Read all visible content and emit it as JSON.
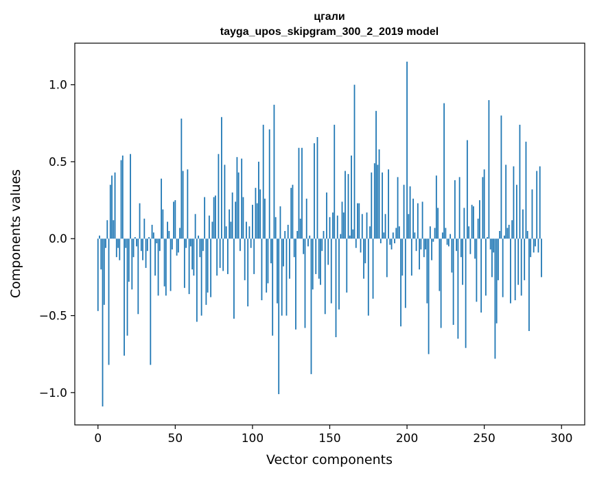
{
  "chart_data": {
    "type": "bar",
    "title_line1": "цгали",
    "title_line2": "tayga_upos_skipgram_300_2_2019 model",
    "xlabel": "Vector components",
    "ylabel": "Components values",
    "xlim": [
      -15,
      315
    ],
    "ylim": [
      -1.21,
      1.27
    ],
    "x_ticks": [
      0,
      50,
      100,
      150,
      200,
      250,
      300
    ],
    "x_tick_labels": [
      "0",
      "50",
      "100",
      "150",
      "200",
      "250",
      "300"
    ],
    "y_ticks": [
      -1.0,
      -0.5,
      0.0,
      0.5,
      1.0
    ],
    "y_tick_labels": [
      "−1.0",
      "−0.5",
      "0.0",
      "0.5",
      "1.0"
    ],
    "bar_color": "#1f77b4",
    "x_start": 0,
    "values": [
      -0.47,
      0.02,
      -0.2,
      -1.09,
      -0.43,
      -0.06,
      0.12,
      -0.82,
      0.35,
      0.41,
      0.12,
      0.43,
      -0.12,
      -0.06,
      -0.14,
      0.51,
      0.54,
      -0.76,
      -0.06,
      -0.63,
      -0.28,
      0.55,
      -0.33,
      -0.12,
      0.01,
      -0.05,
      -0.49,
      0.23,
      -0.08,
      -0.14,
      0.13,
      -0.19,
      -0.08,
      0.01,
      -0.82,
      0.09,
      0.04,
      -0.24,
      -0.03,
      -0.37,
      -0.08,
      0.39,
      0.19,
      -0.31,
      -0.37,
      0.11,
      0.05,
      -0.34,
      -0.07,
      0.24,
      0.25,
      -0.11,
      -0.09,
      0.07,
      0.78,
      0.44,
      -0.32,
      -0.06,
      0.45,
      -0.36,
      -0.05,
      -0.2,
      -0.24,
      0.16,
      -0.54,
      0.02,
      -0.12,
      -0.5,
      -0.08,
      0.27,
      -0.43,
      -0.35,
      0.15,
      -0.38,
      0.11,
      0.27,
      0.28,
      -0.24,
      0.55,
      -0.19,
      0.79,
      -0.21,
      0.48,
      0.08,
      -0.23,
      0.19,
      0.11,
      0.3,
      -0.52,
      0.24,
      0.53,
      0.43,
      -0.08,
      0.52,
      0.27,
      -0.27,
      0.11,
      -0.44,
      0.08,
      -0.06,
      0.22,
      -0.23,
      0.33,
      0.23,
      0.5,
      0.32,
      -0.4,
      0.74,
      0.26,
      -0.35,
      -0.29,
      0.71,
      -0.16,
      -0.63,
      0.87,
      0.14,
      -0.42,
      -1.01,
      0.21,
      -0.5,
      -0.18,
      0.05,
      -0.5,
      0.09,
      -0.26,
      0.33,
      0.35,
      -0.12,
      -0.59,
      0.05,
      0.59,
      0.13,
      0.59,
      -0.1,
      -0.58,
      0.26,
      -0.05,
      0.02,
      -0.88,
      -0.33,
      0.62,
      -0.23,
      0.66,
      -0.26,
      -0.3,
      -0.08,
      0.05,
      -0.49,
      0.3,
      -0.17,
      0.14,
      -0.42,
      0.17,
      0.74,
      -0.64,
      0.15,
      -0.46,
      0.03,
      0.24,
      0.17,
      0.44,
      -0.35,
      0.42,
      0.02,
      0.54,
      0.06,
      1.0,
      -0.06,
      0.23,
      0.23,
      -0.09,
      0.16,
      -0.26,
      -0.16,
      0.17,
      -0.5,
      0.08,
      0.43,
      -0.39,
      0.49,
      0.83,
      0.48,
      0.58,
      -0.03,
      0.43,
      0.04,
      0.16,
      -0.25,
      0.45,
      -0.04,
      -0.07,
      0.04,
      -0.03,
      0.07,
      0.4,
      0.08,
      -0.57,
      -0.24,
      0.35,
      -0.45,
      1.15,
      0.16,
      0.34,
      -0.24,
      0.26,
      0.04,
      -0.08,
      0.23,
      -0.2,
      -0.07,
      0.24,
      -0.12,
      -0.07,
      -0.42,
      -0.75,
      0.08,
      -0.14,
      -0.02,
      0.07,
      0.41,
      0.2,
      -0.34,
      -0.58,
      0.04,
      0.88,
      0.07,
      -0.04,
      -0.05,
      0.03,
      -0.22,
      -0.56,
      0.38,
      -0.08,
      -0.65,
      0.4,
      -0.12,
      -0.3,
      0.2,
      -0.71,
      0.64,
      0.08,
      -0.1,
      0.22,
      0.21,
      -0.13,
      -0.41,
      0.13,
      0.25,
      -0.48,
      0.4,
      0.45,
      -0.37,
      0.01,
      0.9,
      -0.07,
      -0.25,
      -0.09,
      -0.78,
      -0.55,
      -0.27,
      0.05,
      0.8,
      -0.38,
      0.02,
      0.48,
      0.07,
      0.09,
      -0.42,
      0.12,
      0.47,
      -0.4,
      0.35,
      -0.3,
      0.74,
      -0.37,
      0.19,
      -0.27,
      0.63,
      0.05,
      -0.6,
      -0.12,
      0.32,
      -0.09,
      -0.05,
      0.44,
      -0.09,
      0.47,
      -0.25
    ]
  }
}
